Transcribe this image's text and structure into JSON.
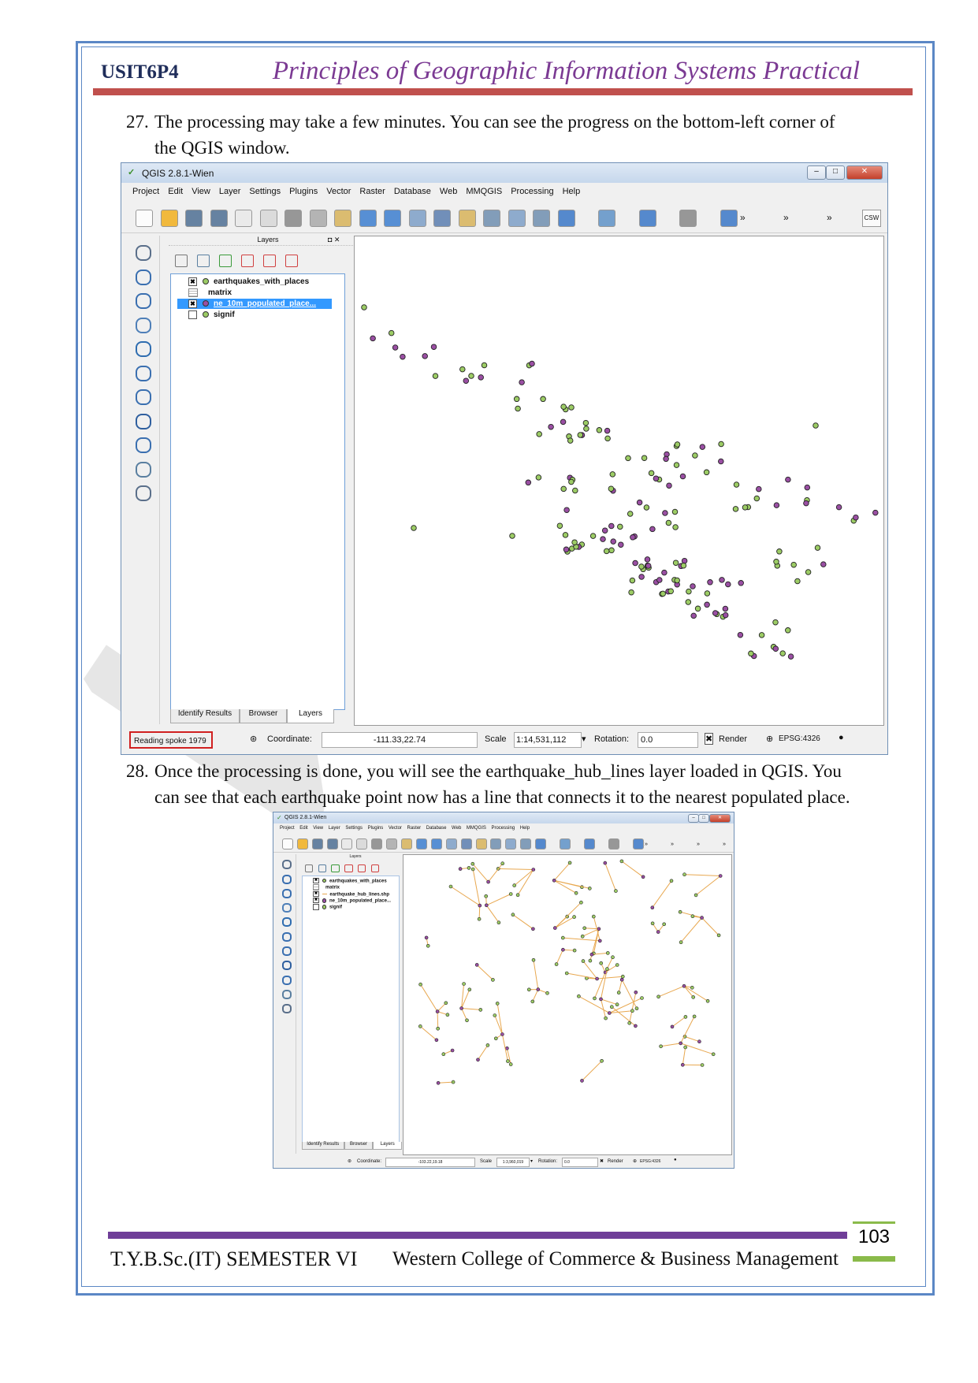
{
  "header": {
    "code": "USIT6P4",
    "title": "Principles of Geographic Information Systems Practical"
  },
  "steps": [
    {
      "num": "27.",
      "line1": "The processing may take a few minutes. You can see the progress on the bottom-left corner of",
      "line2": "the QGIS window."
    },
    {
      "num": "28.",
      "line1": "Once the processing is done, you will see the earthquake_hub_lines layer loaded in QGIS. You",
      "line2": "can see that each earthquake point now has a line that connects it to the nearest populated place."
    }
  ],
  "qgis1": {
    "title": "QGIS 2.8.1-Wien",
    "menus": [
      "Project",
      "Edit",
      "View",
      "Layer",
      "Settings",
      "Plugins",
      "Vector",
      "Raster",
      "Database",
      "Web",
      "MMQGIS",
      "Processing",
      "Help"
    ],
    "layers_panel_title": "Layers",
    "layers": [
      {
        "name": "earthquakes_with_places",
        "checked": true,
        "symbol": "green-point"
      },
      {
        "name": "matrix",
        "checked": null,
        "symbol": "table"
      },
      {
        "name": "ne_10m_populated_place...",
        "checked": true,
        "symbol": "purple-point",
        "selected": true
      },
      {
        "name": "signif",
        "checked": false,
        "symbol": "green-point"
      }
    ],
    "tabs": [
      "Identify Results",
      "Browser",
      "Layers"
    ],
    "status": {
      "progress": "Reading spoke 1979",
      "coordinate_label": "Coordinate:",
      "coordinate": "-111.33,22.74",
      "scale_label": "Scale",
      "scale": "1:14,531,112",
      "rotation_label": "Rotation:",
      "rotation": "0.0",
      "render_label": "Render",
      "crs": "EPSG:4326"
    },
    "toolbar_csw": "CSW"
  },
  "qgis2": {
    "title": "QGIS 2.8.1-Wien",
    "menus": [
      "Project",
      "Edit",
      "View",
      "Layer",
      "Settings",
      "Plugins",
      "Vector",
      "Raster",
      "Database",
      "Web",
      "MMQGIS",
      "Processing",
      "Help"
    ],
    "layers_panel_title": "Layers",
    "layers": [
      {
        "name": "earthquakes_with_places",
        "checked": true,
        "symbol": "green-point"
      },
      {
        "name": "matrix",
        "checked": null,
        "symbol": "table"
      },
      {
        "name": "earthquake_hub_lines.shp",
        "checked": true,
        "symbol": "line"
      },
      {
        "name": "ne_10m_populated_place...",
        "checked": true,
        "symbol": "purple-point"
      },
      {
        "name": "signif",
        "checked": false,
        "symbol": "green-point"
      }
    ],
    "tabs": [
      "Identify Results",
      "Browser",
      "Layers"
    ],
    "status": {
      "coordinate_label": "Coordinate:",
      "coordinate": "-103.22,19.18",
      "scale_label": "Scale",
      "scale": "1:3,960,019",
      "rotation_label": "Rotation:",
      "rotation": "0.0",
      "render_label": "Render",
      "crs": "EPSG:4326"
    }
  },
  "footer": {
    "left": "T.Y.B.Sc.(IT) SEMESTER VI",
    "center": "Western College of Commerce & Business Management",
    "page": "103"
  },
  "colors": {
    "green_point": "#9ccc65",
    "purple_point": "#9a4fa3",
    "hub_line": "#e8a850",
    "header_rule": "#c0504d",
    "footer_rule": "#6f3e98",
    "page_accent": "#8aba4a",
    "frame": "#5b87c5"
  }
}
